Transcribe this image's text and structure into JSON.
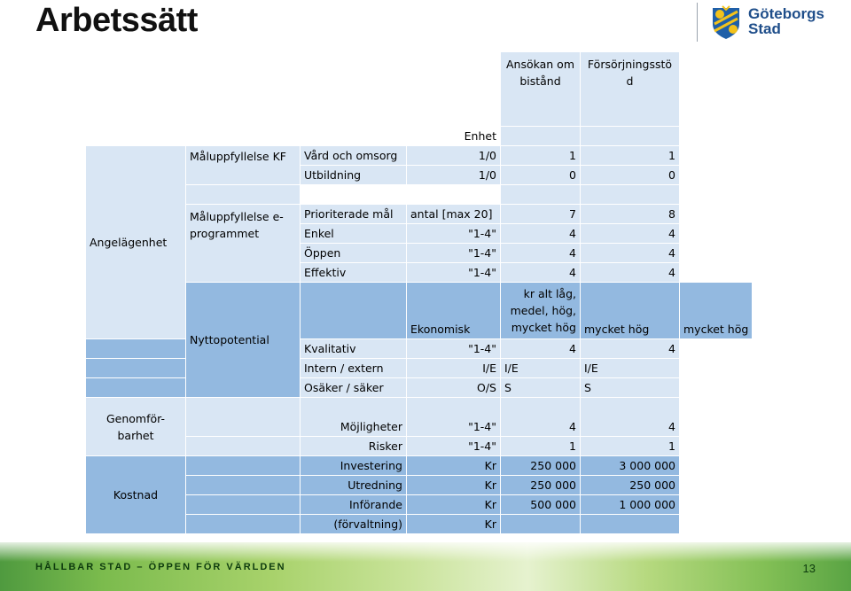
{
  "title": "Arbetssätt",
  "logo": {
    "line1": "Göteborgs",
    "line2": "Stad",
    "crest_icon": "goteborg-crest-icon"
  },
  "colors": {
    "header_blue": "#93b9e0",
    "row_blue": "#d9e6f4",
    "title_color": "#111111",
    "footer_green": "#7bbb4d"
  },
  "table": {
    "columns": [
      "Ansökan om bistånd",
      "Försörjningsstöd"
    ],
    "col_header_1_l1": "Ansökan om",
    "col_header_1_l2": "bistånd",
    "col_header_2_l1": "Försörjningsstö",
    "col_header_2_l2": "d",
    "unit_header": "Enhet",
    "sections": {
      "angelagenhet": "Angelägenhet",
      "nyttopotential": "Nyttopotential",
      "genomforbarhet_l1": "Genomför-",
      "genomforbarhet_l2": "barhet",
      "kostnad": "Kostnad"
    },
    "groups": {
      "kf": "Måluppfyllelse KF",
      "eprog_l1": "Måluppfyllelse e-",
      "eprog_l2": "programmet"
    },
    "rows": [
      {
        "label": "Vård och omsorg",
        "unit": "1/0",
        "a": "1",
        "b": "1"
      },
      {
        "label": "Utbildning",
        "unit": "1/0",
        "a": "0",
        "b": "0"
      },
      {
        "label": "Prioriterade mål",
        "unit": "antal [max 20]",
        "a": "7",
        "b": "8"
      },
      {
        "label": "Enkel",
        "unit": "\"1-4\"",
        "a": "4",
        "b": "4"
      },
      {
        "label": "Öppen",
        "unit": "\"1-4\"",
        "a": "4",
        "b": "4"
      },
      {
        "label": "Effektiv",
        "unit": "\"1-4\"",
        "a": "4",
        "b": "4"
      },
      {
        "label": "Ekonomisk",
        "unit_l1": "kr alt låg,",
        "unit_l2": "medel, hög,",
        "unit_l3": "mycket hög",
        "a": "mycket hög",
        "b": "mycket hög"
      },
      {
        "label": "Kvalitativ",
        "unit": "\"1-4\"",
        "a": "4",
        "b": "4"
      },
      {
        "label": "Intern / extern",
        "unit": "I/E",
        "a": "I/E",
        "b": "I/E"
      },
      {
        "label": "Osäker / säker",
        "unit": "O/S",
        "a": "S",
        "b": "S"
      },
      {
        "label": "Möjligheter",
        "unit": "\"1-4\"",
        "a": "4",
        "b": "4"
      },
      {
        "label": "Risker",
        "unit": "\"1-4\"",
        "a": "1",
        "b": "1"
      },
      {
        "label": "Investering",
        "unit": "Kr",
        "a": "250 000",
        "b": "3 000 000"
      },
      {
        "label": "Utredning",
        "unit": "Kr",
        "a": "250 000",
        "b": "250 000"
      },
      {
        "label": "Införande",
        "unit": "Kr",
        "a": "500 000",
        "b": "1 000 000"
      },
      {
        "label": "(förvaltning)",
        "unit": "Kr",
        "a": "",
        "b": ""
      }
    ]
  },
  "footer": {
    "tagline": "HÅLLBAR STAD – ÖPPEN FÖR VÄRLDEN",
    "page_number": "13"
  }
}
